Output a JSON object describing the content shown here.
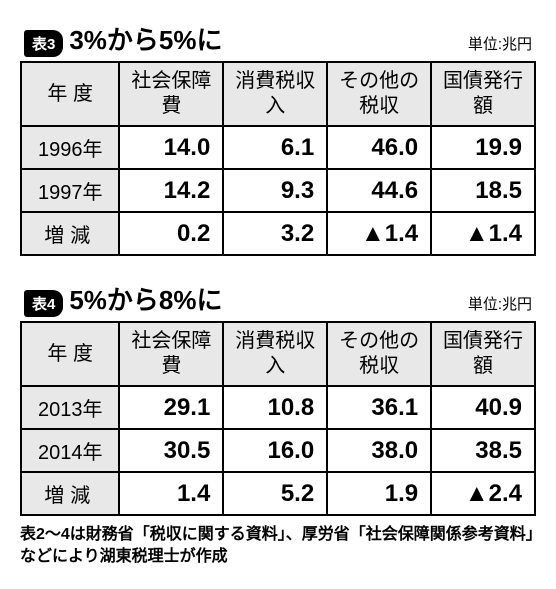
{
  "unit_label": "単位:兆円",
  "table3": {
    "badge": "表3",
    "title": "3%から5%に",
    "columns": [
      "年 度",
      "社会保障費",
      "消費税収入",
      "その他の税収",
      "国債発行額"
    ],
    "rows": [
      {
        "label": "1996年",
        "cells": [
          "14.0",
          "6.1",
          "46.0",
          "19.9"
        ]
      },
      {
        "label": "1997年",
        "cells": [
          "14.2",
          "9.3",
          "44.6",
          "18.5"
        ]
      },
      {
        "label": "増減",
        "cells": [
          "0.2",
          "3.2",
          "▲1.4",
          "▲1.4"
        ],
        "spaced": true
      }
    ]
  },
  "table4": {
    "badge": "表4",
    "title": "5%から8%に",
    "columns": [
      "年 度",
      "社会保障費",
      "消費税収入",
      "その他の税収",
      "国債発行額"
    ],
    "rows": [
      {
        "label": "2013年",
        "cells": [
          "29.1",
          "10.8",
          "36.1",
          "40.9"
        ]
      },
      {
        "label": "2014年",
        "cells": [
          "30.5",
          "16.0",
          "38.0",
          "38.5"
        ]
      },
      {
        "label": "増減",
        "cells": [
          "1.4",
          "5.2",
          "1.9",
          "▲2.4"
        ],
        "spaced": true
      }
    ]
  },
  "footnote": "表2〜4は財務省「税収に関する資料」、厚労省「社会保障関係参考資料」などにより湖東税理士が作成"
}
